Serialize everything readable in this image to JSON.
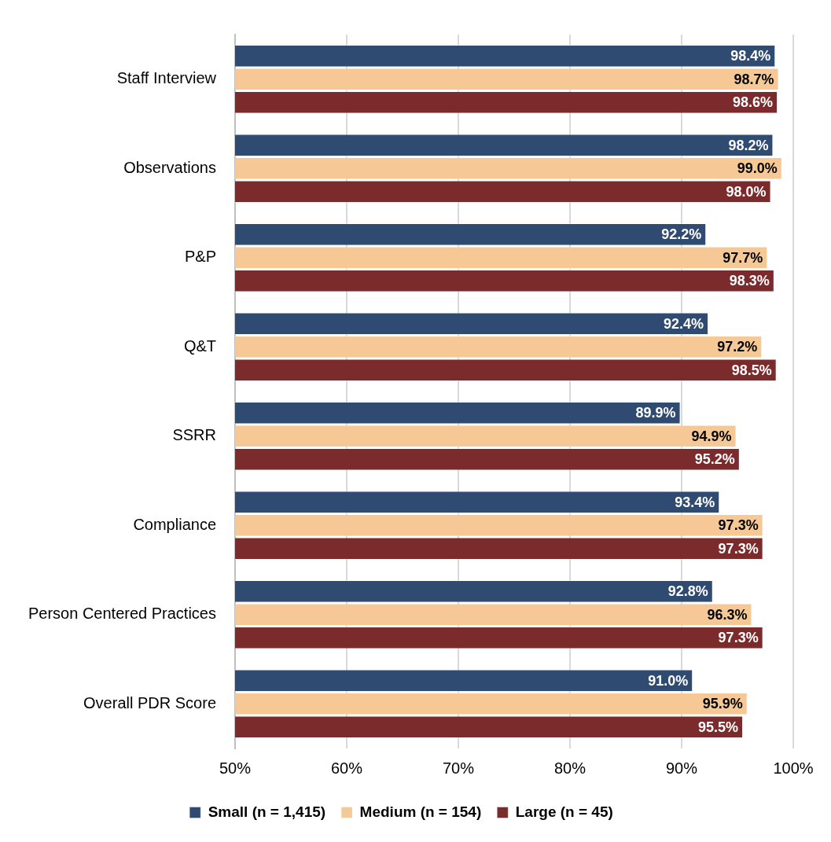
{
  "chart_data": {
    "type": "bar",
    "orientation": "horizontal",
    "categories": [
      "Staff Interview",
      "Observations",
      "P&P",
      "Q&T",
      "SSRR",
      "Compliance",
      "Person Centered Practices",
      "Overall PDR Score"
    ],
    "series": [
      {
        "name": "Small (n = 1,415)",
        "color": "#2f4b72",
        "values": [
          98.4,
          98.2,
          92.2,
          92.4,
          89.9,
          93.4,
          92.8,
          91.0
        ],
        "value_labels": [
          "98.4%",
          "98.2%",
          "92.2%",
          "92.4%",
          "89.9%",
          "93.4%",
          "92.8%",
          "91.0%"
        ]
      },
      {
        "name": "Medium (n = 154)",
        "color": "#f6c896",
        "values": [
          98.7,
          99.0,
          97.7,
          97.2,
          94.9,
          97.3,
          96.3,
          95.9
        ],
        "value_labels": [
          "98.7%",
          "99.0%",
          "97.7%",
          "97.2%",
          "94.9%",
          "97.3%",
          "96.3%",
          "95.9%"
        ]
      },
      {
        "name": "Large (n = 45)",
        "color": "#7b2b2b",
        "values": [
          98.6,
          98.0,
          98.3,
          98.5,
          95.2,
          97.3,
          97.3,
          95.5
        ],
        "value_labels": [
          "98.6%",
          "98.0%",
          "98.3%",
          "98.5%",
          "95.2%",
          "97.3%",
          "97.3%",
          "95.5%"
        ]
      }
    ],
    "xlim": [
      50,
      100
    ],
    "xticks": [
      {
        "value": 50,
        "label": "50%"
      },
      {
        "value": 60,
        "label": "60%"
      },
      {
        "value": 70,
        "label": "70%"
      },
      {
        "value": 80,
        "label": "80%"
      },
      {
        "value": 90,
        "label": "90%"
      },
      {
        "value": 100,
        "label": "100%"
      }
    ],
    "grid": "x",
    "legend": "bottom"
  }
}
